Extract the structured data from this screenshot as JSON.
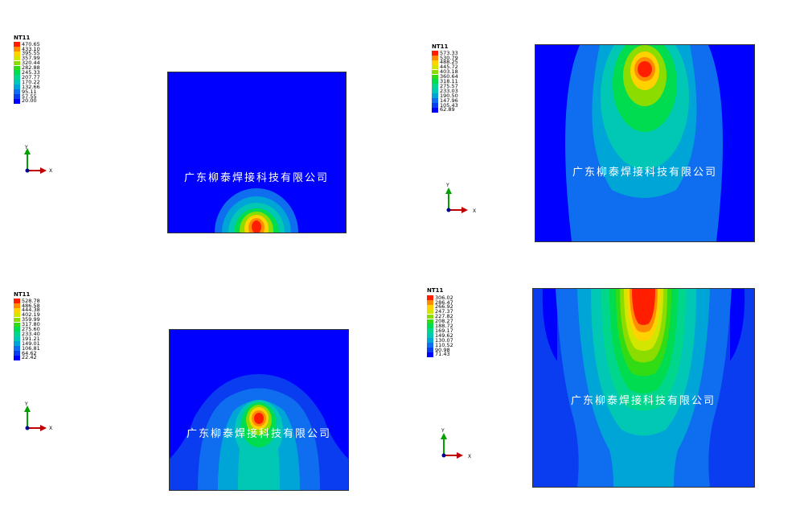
{
  "watermark": "广东柳泰焊接科技有限公司",
  "colors": {
    "c1": "#0000ff",
    "c2": "#0a3cf0",
    "c3": "#0f6ef0",
    "c4": "#00a5d7",
    "c5": "#00c8b4",
    "c6": "#00d78c",
    "c7": "#00dc50",
    "c8": "#32dc14",
    "c9": "#8cdc00",
    "c10": "#d2e600",
    "c11": "#ffd200",
    "c12": "#ff8c00",
    "c13": "#ff1e00"
  },
  "axes": {
    "y": "Y",
    "x": "X"
  },
  "chart_data": [
    {
      "type": "heatmap",
      "variable": "NT11",
      "legend_values": [
        "470.65",
        "433.10",
        "395.55",
        "357.99",
        "320.44",
        "282.88",
        "245.33",
        "207.77",
        "170.22",
        "132.66",
        "95.11",
        "57.55",
        "20.00"
      ]
    },
    {
      "type": "heatmap",
      "variable": "NT11",
      "legend_values": [
        "573.33",
        "530.79",
        "488.25",
        "445.72",
        "403.18",
        "360.64",
        "318.11",
        "275.57",
        "233.03",
        "190.50",
        "147.96",
        "105.43",
        "62.89"
      ]
    },
    {
      "type": "heatmap",
      "variable": "NT11",
      "legend_values": [
        "528.78",
        "486.58",
        "444.38",
        "402.19",
        "359.99",
        "317.80",
        "275.60",
        "233.40",
        "191.21",
        "149.01",
        "106.81",
        "64.62",
        "22.42"
      ]
    },
    {
      "type": "heatmap",
      "variable": "NT11",
      "legend_values": [
        "306.02",
        "286.47",
        "266.92",
        "247.37",
        "227.82",
        "208.27",
        "188.72",
        "169.17",
        "149.62",
        "130.07",
        "110.52",
        "90.98",
        "71.43"
      ]
    }
  ]
}
